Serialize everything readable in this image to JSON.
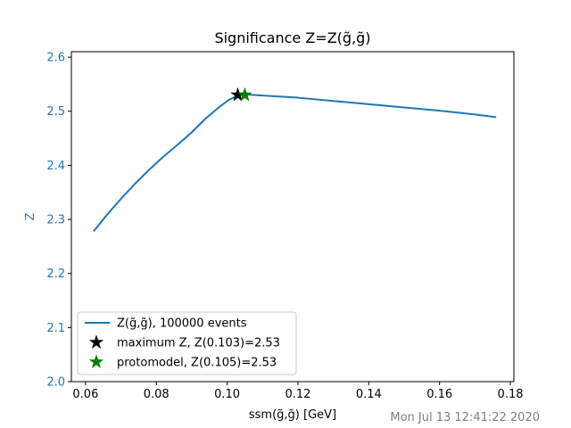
{
  "chart_data": {
    "type": "line",
    "title": "Significance Z=Z(g̃,g̃)",
    "xlabel": "ssm(g̃,g̃) [GeV]",
    "ylabel": "Z",
    "xlim": [
      0.056,
      0.181
    ],
    "ylim": [
      2.0,
      2.61
    ],
    "xticks": [
      0.06,
      0.08,
      0.1,
      0.12,
      0.14,
      0.16,
      0.18
    ],
    "xtick_labels": [
      "0.06",
      "0.08",
      "0.10",
      "0.12",
      "0.14",
      "0.16",
      "0.18"
    ],
    "yticks": [
      2.0,
      2.1,
      2.2,
      2.3,
      2.4,
      2.5,
      2.6
    ],
    "ytick_labels": [
      "2.0",
      "2.1",
      "2.2",
      "2.3",
      "2.4",
      "2.5",
      "2.6"
    ],
    "grid": false,
    "legend_position": "lower-left",
    "series": [
      {
        "name": "Z(g̃,g̃), 100000 events",
        "color": "#1f77b4",
        "x": [
          0.0623,
          0.066,
          0.07,
          0.074,
          0.078,
          0.082,
          0.086,
          0.09,
          0.094,
          0.098,
          0.1005,
          0.103,
          0.105,
          0.11,
          0.12,
          0.13,
          0.14,
          0.15,
          0.16,
          0.17,
          0.176
        ],
        "y": [
          2.278,
          2.308,
          2.338,
          2.366,
          2.392,
          2.416,
          2.438,
          2.461,
          2.487,
          2.509,
          2.521,
          2.529,
          2.531,
          2.529,
          2.525,
          2.519,
          2.513,
          2.507,
          2.501,
          2.494,
          2.489
        ]
      }
    ],
    "markers": [
      {
        "name": "maximum Z, Z(0.103)=2.53",
        "x": 0.103,
        "y": 2.53,
        "color": "#000000",
        "shape": "star"
      },
      {
        "name": "protomodel, Z(0.105)=2.53",
        "x": 0.105,
        "y": 2.53,
        "color": "#008000",
        "shape": "star"
      }
    ]
  },
  "timestamp": "Mon Jul 13 12:41:22 2020"
}
